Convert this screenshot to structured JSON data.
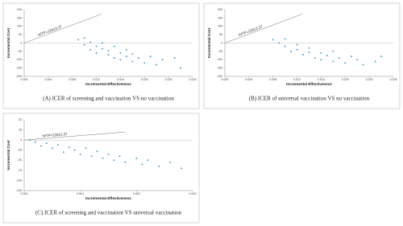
{
  "chart_data": [
    {
      "type": "scatter",
      "caption": "(A) ICER of screening and vaccination VS no vaccination",
      "x_label": "Incremental Effectiveness",
      "y_label": "Incremental Cost",
      "annotation": "WTP=22813.37",
      "xlim": [
        0,
        0.028
      ],
      "xticks": [
        {
          "value": 0,
          "label": "0.000"
        },
        {
          "value": 0.004,
          "label": "0.004"
        },
        {
          "value": 0.008,
          "label": "0.008"
        },
        {
          "value": 0.012,
          "label": "0.012"
        },
        {
          "value": 0.016,
          "label": "0.016"
        },
        {
          "value": 0.02,
          "label": "0.020"
        },
        {
          "value": 0.024,
          "label": "0.024"
        },
        {
          "value": 0.028,
          "label": "0.028"
        }
      ],
      "ylim": [
        -200,
        200
      ],
      "yticks": [
        200,
        150,
        100,
        50,
        0,
        -50,
        -100,
        -150,
        -200
      ],
      "series": [
        {
          "color": "#4aa3d8",
          "x": [
            0.009,
            0.01,
            0.01,
            0.011,
            0.011,
            0.012,
            0.012,
            0.013,
            0.013,
            0.014,
            0.014,
            0.015,
            0.015,
            0.016,
            0.016,
            0.017,
            0.017,
            0.018,
            0.018,
            0.019,
            0.02,
            0.021,
            0.022,
            0.023,
            0.025,
            0.026
          ],
          "values": [
            20,
            -10,
            30,
            -40,
            5,
            -20,
            -60,
            -35,
            0,
            -70,
            -45,
            -20,
            -90,
            -60,
            -100,
            -40,
            -80,
            -110,
            -65,
            -90,
            -120,
            -80,
            -130,
            -100,
            -90,
            -150
          ]
        }
      ]
    },
    {
      "type": "scatter",
      "caption": "(B) ICER of universal  vaccination VS no vaccination",
      "x_label": "Incremental Effectiveness",
      "y_label": "Incremental Cost",
      "annotation": "WTP=22813.37",
      "xlim": [
        0,
        0.028
      ],
      "xticks": [
        {
          "value": 0,
          "label": "0.000"
        },
        {
          "value": 0.004,
          "label": "0.004"
        },
        {
          "value": 0.008,
          "label": "0.008"
        },
        {
          "value": 0.012,
          "label": "0.012"
        },
        {
          "value": 0.016,
          "label": "0.016"
        },
        {
          "value": 0.02,
          "label": "0.020"
        },
        {
          "value": 0.024,
          "label": "0.024"
        },
        {
          "value": 0.028,
          "label": "0.028"
        }
      ],
      "ylim": [
        -200,
        200
      ],
      "yticks": [
        200,
        150,
        100,
        50,
        0,
        -50,
        -100,
        -150,
        -200
      ],
      "series": [
        {
          "color": "#4aa3d8",
          "x": [
            0.008,
            0.009,
            0.01,
            0.01,
            0.011,
            0.012,
            0.012,
            0.013,
            0.014,
            0.014,
            0.015,
            0.016,
            0.016,
            0.017,
            0.018,
            0.018,
            0.019,
            0.02,
            0.021,
            0.022,
            0.023,
            0.025,
            0.026
          ],
          "values": [
            20,
            0,
            -20,
            25,
            -50,
            -10,
            -40,
            -70,
            -30,
            -55,
            -90,
            -60,
            -100,
            -75,
            -110,
            -50,
            -90,
            -120,
            -80,
            -100,
            -130,
            -110,
            -80
          ]
        }
      ]
    },
    {
      "type": "scatter",
      "caption": "(C) ICER of screening and vaccination VS universal vaccination",
      "x_label": "Incremental Effectiveness",
      "y_label": "Incremental Cost",
      "annotation": "WTP=22813.37",
      "xlim": [
        0,
        0.003
      ],
      "xticks": [
        {
          "value": 0,
          "label": "0.000"
        },
        {
          "value": 0.001,
          "label": "0.001"
        },
        {
          "value": 0.002,
          "label": "0.002"
        },
        {
          "value": 0.003,
          "label": "0.003"
        }
      ],
      "ylim": [
        -125,
        50
      ],
      "yticks": [
        50,
        25,
        0,
        -25,
        -50,
        -75,
        -100,
        -125
      ],
      "series": [
        {
          "color": "#4aa3d8",
          "x": [
            0.0001,
            0.0002,
            0.0003,
            0.0004,
            0.0005,
            0.0006,
            0.0007,
            0.0008,
            0.0009,
            0.001,
            0.0011,
            0.0012,
            0.0013,
            0.0014,
            0.0015,
            0.0016,
            0.0017,
            0.0018,
            0.002,
            0.0021,
            0.0022,
            0.0024,
            0.0026,
            0.0028
          ],
          "values": [
            0,
            -5,
            -15,
            -8,
            -20,
            -12,
            -30,
            -18,
            -25,
            -35,
            -20,
            -40,
            -28,
            -45,
            -35,
            -50,
            -40,
            -55,
            -45,
            -60,
            -50,
            -65,
            -55,
            -70
          ]
        }
      ]
    }
  ]
}
